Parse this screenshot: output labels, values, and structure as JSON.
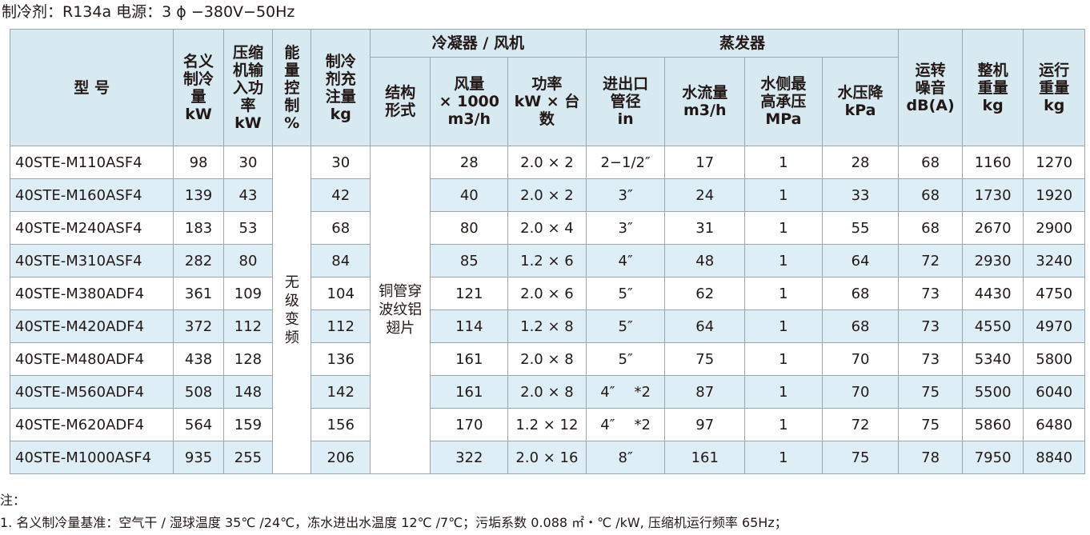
{
  "spec_line": "制冷剂：R134a  电源：3 ϕ −380V−50Hz",
  "headers": {
    "model": "型  号",
    "capacity": [
      "名义",
      "制冷",
      "量",
      "kW"
    ],
    "compressor": [
      "压缩",
      "机输",
      "入功",
      "率",
      "kW"
    ],
    "control": [
      "能",
      "量",
      "控",
      "制",
      "%"
    ],
    "charge": [
      "制冷",
      "剂充",
      "注量",
      "kg"
    ],
    "condenser_group": "冷凝器 / 风机",
    "structure": [
      "结构",
      "形式"
    ],
    "airflow": [
      "风量",
      "× 1000",
      "m3/h"
    ],
    "fan_power": [
      "功率",
      "kW × 台",
      "数"
    ],
    "evaporator_group": "蒸发器",
    "pipe": [
      "进出口",
      "管径",
      "in"
    ],
    "water_flow": [
      "水流量",
      "m3/h"
    ],
    "water_pressure": [
      "水侧最",
      "高承压",
      "MPa"
    ],
    "pressure_drop": [
      "水压降",
      "kPa"
    ],
    "noise": [
      "运转",
      "噪音",
      "dB(A)"
    ],
    "unit_weight": [
      "整机",
      "重量",
      "kg"
    ],
    "op_weight": [
      "运行",
      "重量",
      "kg"
    ]
  },
  "merged": {
    "control_value": [
      "无",
      "级",
      "变",
      "频"
    ],
    "structure_value": [
      "铜管穿",
      "波纹铝",
      "翅片"
    ]
  },
  "rows": [
    {
      "model": "40STE-M110ASF4",
      "capacity": "98",
      "power": "30",
      "charge": "30",
      "airflow": "28",
      "fan": "2.0 × 2",
      "pipe": "2−1/2″",
      "flow": "17",
      "mpa": "1",
      "drop": "28",
      "noise": "68",
      "weight": "1160",
      "op": "1270"
    },
    {
      "model": "40STE-M160ASF4",
      "capacity": "139",
      "power": "43",
      "charge": "42",
      "airflow": "40",
      "fan": "2.0 × 2",
      "pipe": "3″",
      "flow": "24",
      "mpa": "1",
      "drop": "33",
      "noise": "68",
      "weight": "1730",
      "op": "1920"
    },
    {
      "model": "40STE-M240ASF4",
      "capacity": "183",
      "power": "53",
      "charge": "68",
      "airflow": "80",
      "fan": "2.0 × 4",
      "pipe": "3″",
      "flow": "31",
      "mpa": "1",
      "drop": "55",
      "noise": "68",
      "weight": "2670",
      "op": "2900"
    },
    {
      "model": "40STE-M310ASF4",
      "capacity": "282",
      "power": "80",
      "charge": "84",
      "airflow": "85",
      "fan": "1.2 × 6",
      "pipe": "4″",
      "flow": "48",
      "mpa": "1",
      "drop": "64",
      "noise": "72",
      "weight": "2930",
      "op": "3240"
    },
    {
      "model": "40STE-M380ADF4",
      "capacity": "361",
      "power": "109",
      "charge": "104",
      "airflow": "121",
      "fan": "2.0 × 6",
      "pipe": "5″",
      "flow": "62",
      "mpa": "1",
      "drop": "68",
      "noise": "73",
      "weight": "4430",
      "op": "4750"
    },
    {
      "model": "40STE-M420ADF4",
      "capacity": "372",
      "power": "112",
      "charge": "112",
      "airflow": "114",
      "fan": "1.2 × 8",
      "pipe": "5″",
      "flow": "64",
      "mpa": "1",
      "drop": "68",
      "noise": "73",
      "weight": "4550",
      "op": "4970"
    },
    {
      "model": "40STE-M480ADF4",
      "capacity": "438",
      "power": "128",
      "charge": "136",
      "airflow": "161",
      "fan": "2.0 × 8",
      "pipe": "5″",
      "flow": "75",
      "mpa": "1",
      "drop": "70",
      "noise": "73",
      "weight": "5340",
      "op": "5800"
    },
    {
      "model": "40STE-M560ADF4",
      "capacity": "508",
      "power": "148",
      "charge": "142",
      "airflow": "161",
      "fan": "2.0 × 8",
      "pipe": "4″",
      "pipe_mult": "*2",
      "flow": "87",
      "mpa": "1",
      "drop": "70",
      "noise": "75",
      "weight": "5500",
      "op": "6040"
    },
    {
      "model": "40STE-M620ADF4",
      "capacity": "564",
      "power": "159",
      "charge": "156",
      "airflow": "170",
      "fan": "1.2 × 12",
      "pipe": "4″",
      "pipe_mult": "*2",
      "flow": "97",
      "mpa": "1",
      "drop": "72",
      "noise": "75",
      "weight": "5860",
      "op": "6480"
    },
    {
      "model": "40STE-M1000ASF4",
      "capacity": "935",
      "power": "255",
      "charge": "206",
      "airflow": "322",
      "fan": "2.0 × 16",
      "pipe": "8″",
      "flow": "161",
      "mpa": "1",
      "drop": "75",
      "noise": "78",
      "weight": "7950",
      "op": "8840"
    }
  ],
  "notes": {
    "label": "注：",
    "items": [
      "1. 名义制冷量基准：空气干 / 湿球温度 35℃ /24℃，冻水进出水温度 12℃ /7℃；污垢系数 0.088 ㎡・℃ /kW, 压缩机运行频率 65Hz；"
    ]
  }
}
